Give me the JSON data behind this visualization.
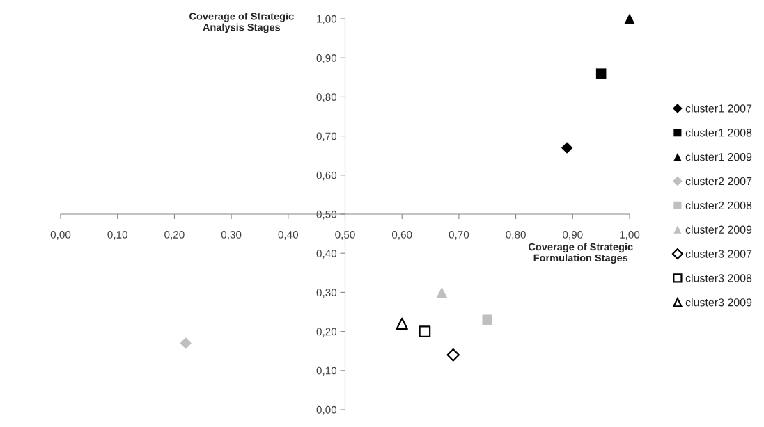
{
  "chart_data": {
    "type": "scatter",
    "xlabel": "Coverage of Strategic\nFormulation Stages",
    "ylabel": "Coverage of Strategic\nAnalysis Stages",
    "xlim": [
      0,
      1
    ],
    "ylim": [
      0,
      1
    ],
    "xticks": [
      {
        "value": 0,
        "label": "0,00"
      },
      {
        "value": 0.1,
        "label": "0,10"
      },
      {
        "value": 0.2,
        "label": "0,20"
      },
      {
        "value": 0.3,
        "label": "0,30"
      },
      {
        "value": 0.4,
        "label": "0,40"
      },
      {
        "value": 0.5,
        "label": "0,50"
      },
      {
        "value": 0.6,
        "label": "0,60"
      },
      {
        "value": 0.7,
        "label": "0,70"
      },
      {
        "value": 0.8,
        "label": "0,80"
      },
      {
        "value": 0.9,
        "label": "0,90"
      },
      {
        "value": 1.0,
        "label": "1,00"
      }
    ],
    "yticks": [
      {
        "value": 0,
        "label": "0,00"
      },
      {
        "value": 0.1,
        "label": "0,10"
      },
      {
        "value": 0.2,
        "label": "0,20"
      },
      {
        "value": 0.3,
        "label": "0,30"
      },
      {
        "value": 0.4,
        "label": "0,40"
      },
      {
        "value": 0.5,
        "label": "0,50"
      },
      {
        "value": 0.6,
        "label": "0,60"
      },
      {
        "value": 0.7,
        "label": "0,70"
      },
      {
        "value": 0.8,
        "label": "0,80"
      },
      {
        "value": 0.9,
        "label": "0,90"
      },
      {
        "value": 1.0,
        "label": "1,00"
      }
    ],
    "grid": false,
    "legend": "right",
    "series": [
      {
        "name": "cluster1 2007",
        "color": "#000000",
        "marker": "diamond",
        "x": [
          0.89
        ],
        "values": [
          0.67
        ]
      },
      {
        "name": "cluster1 2008",
        "color": "#000000",
        "marker": "square",
        "x": [
          0.95
        ],
        "values": [
          0.86
        ]
      },
      {
        "name": "cluster1 2009",
        "color": "#000000",
        "marker": "triangle",
        "x": [
          1.0
        ],
        "values": [
          1.0
        ]
      },
      {
        "name": "cluster2 2007",
        "color": "#bfbfbf",
        "marker": "diamond",
        "x": [
          0.22
        ],
        "values": [
          0.17
        ]
      },
      {
        "name": "cluster2 2008",
        "color": "#bfbfbf",
        "marker": "square",
        "x": [
          0.75
        ],
        "values": [
          0.23
        ]
      },
      {
        "name": "cluster2 2009",
        "color": "#bfbfbf",
        "marker": "triangle",
        "x": [
          0.67
        ],
        "values": [
          0.3
        ]
      },
      {
        "name": "cluster3 2007",
        "color": "#000000",
        "marker": "diamond-open",
        "x": [
          0.69
        ],
        "values": [
          0.14
        ]
      },
      {
        "name": "cluster3 2008",
        "color": "#000000",
        "marker": "square-open",
        "x": [
          0.64
        ],
        "values": [
          0.2
        ]
      },
      {
        "name": "cluster3 2009",
        "color": "#000000",
        "marker": "triangle-open",
        "x": [
          0.6
        ],
        "values": [
          0.22
        ]
      }
    ]
  }
}
